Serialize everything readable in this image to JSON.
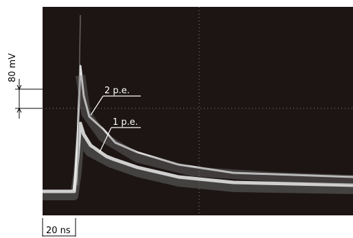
{
  "scale": {
    "voltage": "80 mV",
    "time": "20 ns"
  },
  "annotations": [
    "2 p.e.",
    "1 p.e."
  ]
}
